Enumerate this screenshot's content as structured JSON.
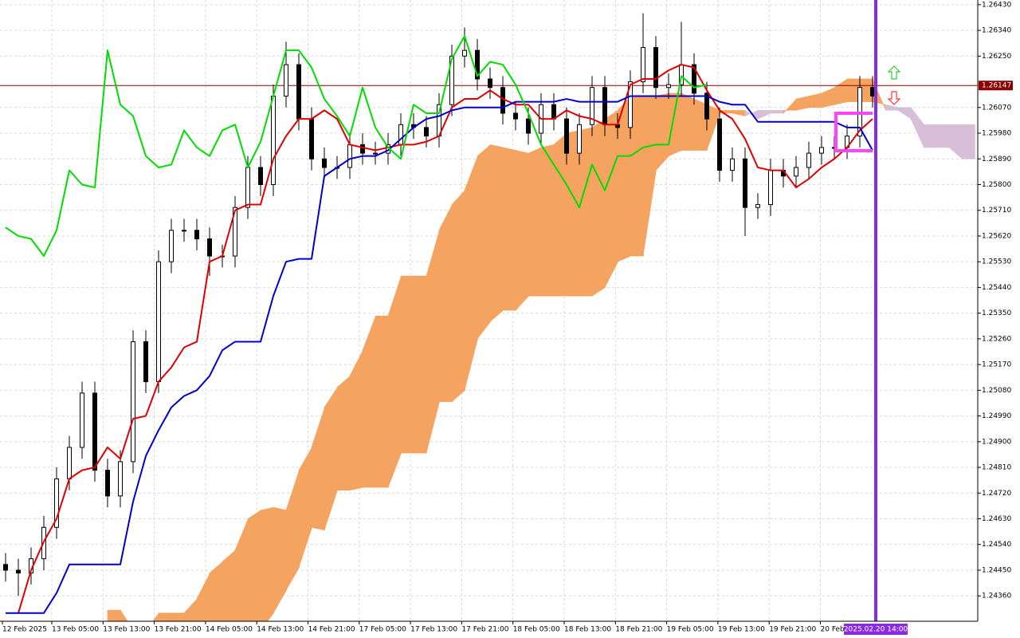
{
  "chart_data": {
    "type": "candlestick",
    "x_labels": [
      "12 Feb 2025",
      "13 Feb 05:00",
      "13 Feb 13:00",
      "13 Feb 21:00",
      "14 Feb 05:00",
      "14 Feb 13:00",
      "14 Feb 21:00",
      "17 Feb 05:00",
      "17 Feb 13:00",
      "17 Feb 21:00",
      "18 Feb 05:00",
      "18 Feb 13:00",
      "18 Feb 21:00",
      "19 Feb 05:00",
      "19 Feb 13:00",
      "19 Feb 21:00",
      "20 Feb 05:00"
    ],
    "cursor_time": "2025.02.20 14:00",
    "ylim": [
      1.24274,
      1.26438
    ],
    "yticks": [
      {
        "value": 1.2643,
        "label": "1.26430"
      },
      {
        "value": 1.2634,
        "label": "1.26340"
      },
      {
        "value": 1.2625,
        "label": "1.26250"
      },
      {
        "value": 1.2607,
        "label": "1.26070"
      },
      {
        "value": 1.2598,
        "label": "1.25980"
      },
      {
        "value": 1.2589,
        "label": "1.25890"
      },
      {
        "value": 1.258,
        "label": "1.25800"
      },
      {
        "value": 1.2571,
        "label": "1.25710"
      },
      {
        "value": 1.2562,
        "label": "1.25620"
      },
      {
        "value": 1.2553,
        "label": "1.25530"
      },
      {
        "value": 1.2544,
        "label": "1.25440"
      },
      {
        "value": 1.2535,
        "label": "1.25350"
      },
      {
        "value": 1.2526,
        "label": "1.25260"
      },
      {
        "value": 1.2517,
        "label": "1.25170"
      },
      {
        "value": 1.2508,
        "label": "1.25080"
      },
      {
        "value": 1.2499,
        "label": "1.24990"
      },
      {
        "value": 1.249,
        "label": "1.24900"
      },
      {
        "value": 1.2481,
        "label": "1.24810"
      },
      {
        "value": 1.2472,
        "label": "1.24720"
      },
      {
        "value": 1.2463,
        "label": "1.24630"
      },
      {
        "value": 1.2454,
        "label": "1.24540"
      },
      {
        "value": 1.2445,
        "label": "1.24450"
      },
      {
        "value": 1.2436,
        "label": "1.24360"
      }
    ],
    "grid": true,
    "current_price": {
      "value": 1.26147,
      "color": "#8b0000"
    },
    "candles": {
      "up_color": "#ffffff",
      "down_color": "#000000",
      "open": [
        1.2447,
        1.2445,
        1.2444,
        1.2449,
        1.246,
        1.2477,
        1.2488,
        1.2507,
        1.248,
        1.2471,
        1.2483,
        1.2525,
        1.2511,
        1.2553,
        1.2564,
        1.2564,
        1.2561,
        1.2555,
        1.2555,
        1.2572,
        1.2586,
        1.258,
        1.2611,
        1.2622,
        1.2603,
        1.2589,
        1.2586,
        1.2586,
        1.2594,
        1.2591,
        1.2591,
        1.2594,
        1.2601,
        1.26,
        1.2597,
        1.2608,
        1.2625,
        1.2627,
        1.2617,
        1.2614,
        1.2605,
        1.2603,
        1.2598,
        1.2608,
        1.2603,
        1.2591,
        1.2601,
        1.2614,
        1.2601,
        1.26,
        1.2616,
        1.2628,
        1.2614,
        1.2615,
        1.2622,
        1.2612,
        1.2603,
        1.2585,
        1.2589,
        1.2572,
        1.2573,
        1.2585,
        1.2583,
        1.2586,
        1.2591,
        1.2593,
        1.2593,
        1.2597,
        1.2614
      ],
      "high": [
        1.2451,
        1.2449,
        1.2453,
        1.2464,
        1.2481,
        1.2492,
        1.2511,
        1.2511,
        1.2484,
        1.2487,
        1.2529,
        1.2529,
        1.2557,
        1.2568,
        1.2568,
        1.2568,
        1.2565,
        1.2559,
        1.2576,
        1.259,
        1.259,
        1.2615,
        1.263,
        1.2626,
        1.2607,
        1.2593,
        1.259,
        1.2598,
        1.2598,
        1.2595,
        1.2598,
        1.2605,
        1.2605,
        1.2604,
        1.2612,
        1.2629,
        1.2635,
        1.2631,
        1.2621,
        1.2618,
        1.2609,
        1.2607,
        1.2612,
        1.2612,
        1.2607,
        1.2605,
        1.2618,
        1.2618,
        1.2605,
        1.262,
        1.264,
        1.2632,
        1.2619,
        1.2637,
        1.2626,
        1.2616,
        1.2607,
        1.2593,
        1.2593,
        1.2577,
        1.2589,
        1.2589,
        1.259,
        1.2595,
        1.2597,
        1.2597,
        1.2601,
        1.2618,
        1.2618
      ],
      "low": [
        1.2441,
        1.2436,
        1.244,
        1.2445,
        1.2456,
        1.2473,
        1.2484,
        1.2476,
        1.2467,
        1.2467,
        1.2479,
        1.2507,
        1.2507,
        1.2549,
        1.256,
        1.2557,
        1.2548,
        1.2551,
        1.2551,
        1.2568,
        1.2576,
        1.2576,
        1.2607,
        1.2599,
        1.2585,
        1.2582,
        1.2582,
        1.2582,
        1.2587,
        1.2587,
        1.2587,
        1.259,
        1.2596,
        1.2593,
        1.2593,
        1.2604,
        1.2621,
        1.2613,
        1.261,
        1.2601,
        1.2599,
        1.2594,
        1.2594,
        1.2599,
        1.2587,
        1.2587,
        1.2597,
        1.2597,
        1.2596,
        1.2596,
        1.2612,
        1.261,
        1.261,
        1.2611,
        1.2608,
        1.2599,
        1.2581,
        1.2581,
        1.2562,
        1.2568,
        1.2569,
        1.2579,
        1.2579,
        1.2582,
        1.2587,
        1.2589,
        1.2589,
        1.2593,
        1.2607
      ],
      "close": [
        1.2445,
        1.2444,
        1.2449,
        1.246,
        1.2477,
        1.2488,
        1.2507,
        1.248,
        1.2471,
        1.2483,
        1.2525,
        1.2511,
        1.2553,
        1.2564,
        1.2564,
        1.2561,
        1.2555,
        1.2555,
        1.2572,
        1.2586,
        1.258,
        1.2611,
        1.2622,
        1.2603,
        1.2589,
        1.2586,
        1.2586,
        1.2594,
        1.2591,
        1.2591,
        1.2594,
        1.2601,
        1.26,
        1.2597,
        1.2608,
        1.2625,
        1.2627,
        1.2617,
        1.2614,
        1.2605,
        1.2603,
        1.2598,
        1.2608,
        1.2603,
        1.2591,
        1.2601,
        1.2614,
        1.2601,
        1.26,
        1.2616,
        1.2628,
        1.2614,
        1.2615,
        1.2622,
        1.2612,
        1.2603,
        1.2585,
        1.2589,
        1.2572,
        1.2573,
        1.2585,
        1.2583,
        1.2586,
        1.2591,
        1.2593,
        1.2593,
        1.2597,
        1.2614,
        1.2611
      ]
    },
    "cloud": {
      "up_color": "#f4a460",
      "down_color": "#d8bfd8",
      "span_a": [
        null,
        null,
        null,
        null,
        null,
        null,
        null,
        null,
        1.2431,
        1.2431,
        1.2424,
        1.2424,
        1.243,
        1.243,
        1.243,
        1.2435,
        1.2444,
        1.2448,
        1.2452,
        1.2463,
        1.2466,
        1.2467,
        1.2466,
        1.248,
        1.2488,
        1.2502,
        1.2509,
        1.2513,
        1.2522,
        1.2534,
        1.2534,
        1.2548,
        1.2548,
        1.2548,
        1.2564,
        1.2573,
        1.2578,
        1.259,
        1.2594,
        1.2593,
        1.2592,
        1.2591,
        1.2593,
        1.2594,
        1.2598,
        1.2599,
        1.26,
        1.2603,
        1.2606,
        1.2611,
        1.2611,
        1.2611,
        1.2612,
        1.2612,
        1.261,
        1.2608,
        1.2606,
        1.2606,
        1.2606,
        1.2603,
        1.2605,
        1.2605,
        1.261,
        1.2611,
        1.2612,
        1.2614,
        1.2617,
        1.2617,
        1.2617,
        1.2606,
        1.2606,
        1.2603,
        1.2593,
        1.2593,
        1.2593,
        1.2589,
        1.2589
      ],
      "span_b": [
        null,
        null,
        null,
        null,
        null,
        null,
        null,
        null,
        1.2424,
        1.2424,
        1.2421,
        1.2421,
        1.2421,
        1.2421,
        1.2421,
        1.2421,
        1.2421,
        1.2421,
        1.2421,
        1.2421,
        1.2424,
        1.243,
        1.2438,
        1.2446,
        1.246,
        1.2459,
        1.2473,
        1.2473,
        1.2474,
        1.2474,
        1.2474,
        1.2486,
        1.2486,
        1.2486,
        1.2504,
        1.2504,
        1.2508,
        1.2526,
        1.2532,
        1.2536,
        1.2536,
        1.2541,
        1.2541,
        1.2541,
        1.2541,
        1.2541,
        1.2541,
        1.2544,
        1.2553,
        1.2555,
        1.2555,
        1.2585,
        1.259,
        1.2592,
        1.2592,
        1.2592,
        1.2605,
        1.2605,
        1.2604,
        1.2606,
        1.2606,
        1.2606,
        1.2606,
        1.2607,
        1.2607,
        1.2608,
        1.2609,
        1.2609,
        1.2609,
        1.2608,
        1.2607,
        1.2607,
        1.2601,
        1.2601,
        1.2601,
        1.2601,
        1.2601
      ]
    },
    "lines": [
      {
        "color": "#e00000",
        "values": [
          null,
          1.243,
          1.2445,
          1.2455,
          1.2463,
          1.2477,
          1.248,
          1.2481,
          1.2488,
          1.2484,
          1.2498,
          1.2499,
          1.2511,
          1.2516,
          1.2523,
          1.2525,
          1.2553,
          1.2555,
          1.2571,
          1.2573,
          1.2573,
          1.2589,
          1.2597,
          1.2603,
          1.2603,
          1.2606,
          1.2603,
          1.2594,
          1.2593,
          1.2592,
          1.2593,
          1.2594,
          1.2594,
          1.2595,
          1.2597,
          1.2607,
          1.261,
          1.261,
          1.2613,
          1.261,
          1.2608,
          1.2608,
          1.2603,
          1.2603,
          1.2606,
          1.2604,
          1.2603,
          1.2601,
          1.2601,
          1.2615,
          1.2617,
          1.2617,
          1.262,
          1.2622,
          1.2621,
          1.2613,
          1.2606,
          1.2603,
          1.2596,
          1.2586,
          1.2585,
          1.2585,
          1.2579,
          1.2582,
          1.2586,
          1.2589,
          1.2593,
          1.2599,
          1.2603
        ]
      },
      {
        "color": "#0000cc",
        "values": [
          1.243,
          1.243,
          1.243,
          1.243,
          1.2437,
          1.2447,
          1.2447,
          1.2447,
          1.2447,
          1.2447,
          1.2469,
          1.2485,
          1.2494,
          1.2502,
          1.2506,
          1.2508,
          1.2513,
          1.2522,
          1.2525,
          1.2525,
          1.2525,
          1.2541,
          1.2553,
          1.2554,
          1.2554,
          1.2583,
          1.2586,
          1.2589,
          1.259,
          1.259,
          1.2592,
          1.2596,
          1.26,
          1.2603,
          1.2604,
          1.2606,
          1.2607,
          1.2607,
          1.2607,
          1.2607,
          1.2609,
          1.2609,
          1.2609,
          1.2609,
          1.261,
          1.2609,
          1.2609,
          1.2609,
          1.2609,
          1.2611,
          1.2611,
          1.2611,
          1.2611,
          1.2611,
          1.2611,
          1.2611,
          1.2609,
          1.2608,
          1.2608,
          1.2602,
          1.2602,
          1.2602,
          1.2602,
          1.2602,
          1.2602,
          1.2602,
          1.26,
          1.26,
          1.2592
        ]
      },
      {
        "color": "#00dd00",
        "values": [
          1.2565,
          1.2562,
          1.2561,
          1.2555,
          1.2564,
          1.2585,
          1.258,
          1.2579,
          1.2627,
          1.2608,
          1.2604,
          1.259,
          1.2586,
          1.2587,
          1.2599,
          1.2593,
          1.259,
          1.2599,
          1.2601,
          1.2586,
          1.2595,
          1.2611,
          1.2627,
          1.2627,
          1.2621,
          1.261,
          1.2604,
          1.2597,
          1.2614,
          1.26,
          1.2593,
          1.2589,
          1.2608,
          1.2605,
          1.2605,
          1.2624,
          1.2632,
          1.2618,
          1.2623,
          1.2622,
          1.2615,
          1.2605,
          1.2594,
          1.2587,
          1.258,
          1.2572,
          1.2587,
          1.2578,
          1.259,
          1.259,
          1.2593,
          1.2594,
          1.2594,
          1.2618,
          1.2614,
          1.2615
        ]
      }
    ]
  }
}
